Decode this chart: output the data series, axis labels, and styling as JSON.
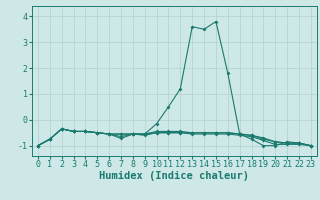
{
  "title": "",
  "xlabel": "Humidex (Indice chaleur)",
  "x": [
    0,
    1,
    2,
    3,
    4,
    5,
    6,
    7,
    8,
    9,
    10,
    11,
    12,
    13,
    14,
    15,
    16,
    17,
    18,
    19,
    20,
    21,
    22,
    23
  ],
  "line1": [
    -1.0,
    -0.75,
    -0.35,
    -0.45,
    -0.45,
    -0.5,
    -0.55,
    -0.65,
    -0.55,
    -0.55,
    -0.15,
    0.5,
    1.2,
    3.6,
    3.5,
    3.8,
    1.8,
    -0.55,
    -0.75,
    -1.0,
    -1.0,
    -0.85,
    -0.9,
    -1.0
  ],
  "line2": [
    -1.0,
    -0.75,
    -0.35,
    -0.45,
    -0.45,
    -0.5,
    -0.55,
    -0.72,
    -0.55,
    -0.55,
    -0.45,
    -0.45,
    -0.45,
    -0.5,
    -0.5,
    -0.5,
    -0.5,
    -0.55,
    -0.6,
    -0.75,
    -0.85,
    -0.9,
    -0.9,
    -1.0
  ],
  "line3": [
    -1.0,
    -0.75,
    -0.35,
    -0.45,
    -0.45,
    -0.5,
    -0.55,
    -0.55,
    -0.55,
    -0.6,
    -0.5,
    -0.5,
    -0.5,
    -0.55,
    -0.55,
    -0.55,
    -0.55,
    -0.6,
    -0.65,
    -0.8,
    -0.95,
    -0.95,
    -0.95,
    -1.0
  ],
  "line4": [
    -1.0,
    -0.75,
    -0.35,
    -0.45,
    -0.45,
    -0.5,
    -0.55,
    -0.55,
    -0.55,
    -0.55,
    -0.5,
    -0.5,
    -0.5,
    -0.5,
    -0.5,
    -0.5,
    -0.5,
    -0.55,
    -0.6,
    -0.7,
    -0.85,
    -0.9,
    -0.9,
    -1.0
  ],
  "line_color": "#1a7a6e",
  "bg_color": "#cde8e6",
  "grid_color": "#b0d0ce",
  "ylim": [
    -1.4,
    4.4
  ],
  "yticks": [
    -1,
    0,
    1,
    2,
    3,
    4
  ],
  "axis_color": "#1a7a6e",
  "tick_fontsize": 6,
  "xlabel_fontsize": 7.5
}
